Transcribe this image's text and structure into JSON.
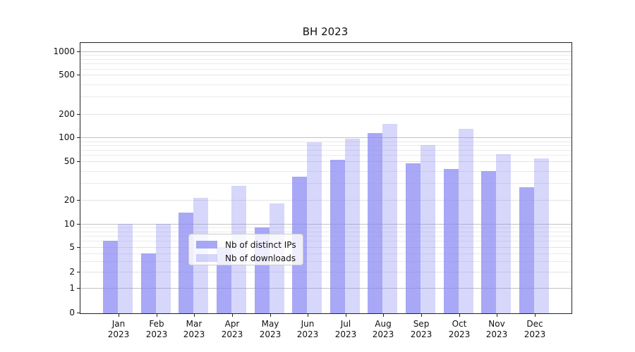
{
  "chart_data": {
    "type": "bar",
    "title": "BH 2023",
    "categories": [
      "Jan 2023",
      "Feb 2023",
      "Mar 2023",
      "Apr 2023",
      "May 2023",
      "Jun 2023",
      "Jul 2023",
      "Aug 2023",
      "Sep 2023",
      "Oct 2023",
      "Nov 2023",
      "Dec 2023"
    ],
    "series": [
      {
        "name": "Nb of distinct IPs",
        "color": "#8686f2",
        "opacity": 0.72,
        "values": [
          6,
          4,
          14,
          5,
          9,
          35,
          52,
          115,
          48,
          42,
          40,
          27
        ]
      },
      {
        "name": "Nb of downloads",
        "color": "#8686f2",
        "opacity": 0.33,
        "values": [
          10,
          10,
          21,
          28,
          18,
          88,
          96,
          150,
          80,
          128,
          61,
          55
        ]
      }
    ],
    "xlabel": "",
    "ylabel": "",
    "y_ticks": [
      0,
      1,
      2,
      5,
      10,
      20,
      50,
      100,
      200,
      500,
      1000
    ],
    "y_scale": "log-like (log1p), 0 shown at axis bottom",
    "ylim": [
      0,
      1200
    ],
    "grid": true,
    "legend_position": "lower center",
    "colors": {
      "grid_major": "#c2c2c2",
      "grid_mid": "#e3e3e3",
      "grid_minor": "#ebebeb",
      "spine": "#222222",
      "text": "#111111"
    }
  }
}
